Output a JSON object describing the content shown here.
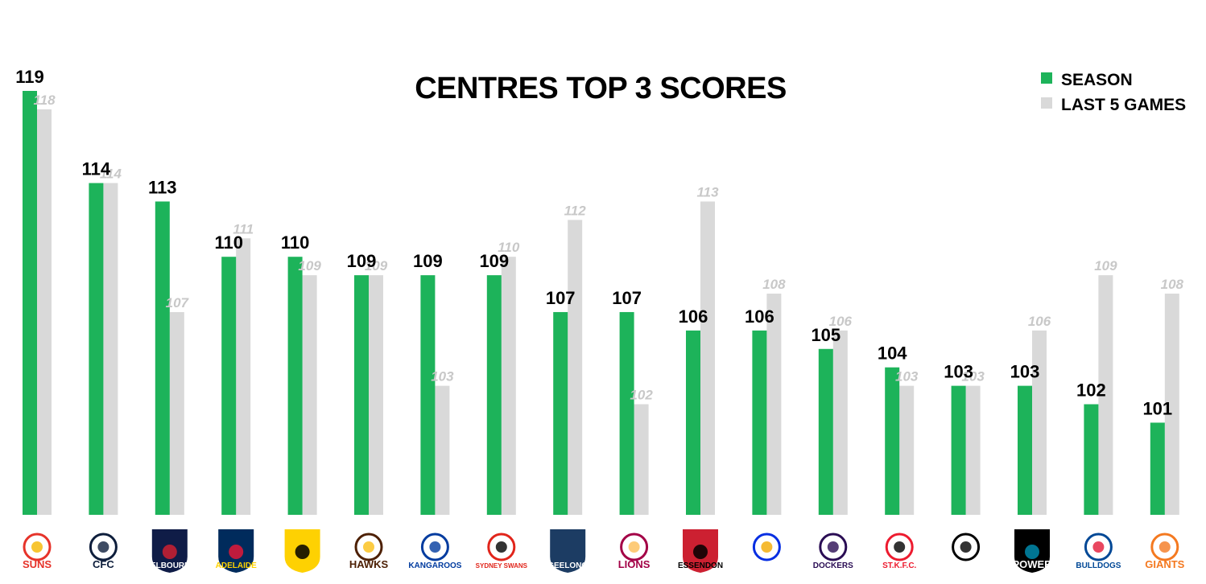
{
  "chart_data": {
    "type": "bar",
    "title": "CENTRES TOP 3 SCORES",
    "categories": [
      "SUNS",
      "Carlton",
      "MELBOURNE",
      "ADELAIDE CROWS",
      "Richmond",
      "HAWKS",
      "KANGAROOS",
      "SYDNEY SWANS",
      "GEELONG CATS",
      "BRISBANE LIONS",
      "ESSENDON",
      "West Coast Eagles",
      "FREMANTLE DOCKERS",
      "ST.K.F.C.",
      "Collingwood",
      "POWER",
      "WESTERN BULLDOGS",
      "GIANTS"
    ],
    "series": [
      {
        "name": "SEASON",
        "color": "#1db35a",
        "values": [
          119,
          114,
          113,
          110,
          110,
          109,
          109,
          109,
          107,
          107,
          106,
          106,
          105,
          104,
          103,
          103,
          102,
          101
        ]
      },
      {
        "name": "LAST 5 GAMES",
        "color": "#d9d9d9",
        "values": [
          118,
          114,
          107,
          111,
          109,
          109,
          103,
          110,
          112,
          102,
          113,
          108,
          106,
          103,
          103,
          106,
          109,
          108
        ]
      }
    ],
    "ylim": [
      96,
      120
    ],
    "grid": false,
    "legend_position": "top-right"
  },
  "logos": [
    {
      "icon": "suns-logo",
      "text": "SUNS",
      "bg": "#ffffff",
      "color": "#e6332a",
      "accent": "#f5b700"
    },
    {
      "icon": "carlton-logo",
      "text": "CFC",
      "bg": "#ffffff",
      "color": "#0e1e3c",
      "accent": "#0e1e3c"
    },
    {
      "icon": "melbourne-logo",
      "text": "MELBOURNE",
      "bg": "#0f1c47",
      "color": "#ffffff",
      "accent": "#cc2031"
    },
    {
      "icon": "crows-logo",
      "text": "ADELAIDE",
      "bg": "#002b5c",
      "color": "#ffd200",
      "accent": "#e21937"
    },
    {
      "icon": "tigers-logo",
      "text": "",
      "bg": "#fed102",
      "color": "#000000",
      "accent": "#000000"
    },
    {
      "icon": "hawks-logo",
      "text": "HAWKS",
      "bg": "#ffffff",
      "color": "#4d2004",
      "accent": "#fbbf15"
    },
    {
      "icon": "kangaroos-logo",
      "text": "KANGAROOS",
      "bg": "#ffffff",
      "color": "#013b9f",
      "accent": "#013b9f"
    },
    {
      "icon": "swans-logo",
      "text": "SYDNEY SWANS",
      "bg": "#ffffff",
      "color": "#e1251b",
      "accent": "#000000"
    },
    {
      "icon": "cats-logo",
      "text": "GEELONG",
      "bg": "#1c3c63",
      "color": "#ffffff",
      "accent": "#1c3c63"
    },
    {
      "icon": "lions-logo",
      "text": "LIONS",
      "bg": "#ffffff",
      "color": "#a30046",
      "accent": "#fdbe57"
    },
    {
      "icon": "bombers-logo",
      "text": "ESSENDON",
      "bg": "#cc2031",
      "color": "#000000",
      "accent": "#000000"
    },
    {
      "icon": "eagles-logo",
      "text": "",
      "bg": "#ffffff",
      "color": "#062ee2",
      "accent": "#f2a900"
    },
    {
      "icon": "dockers-logo",
      "text": "DOCKERS",
      "bg": "#ffffff",
      "color": "#2a0d54",
      "accent": "#2a0d54"
    },
    {
      "icon": "saints-logo",
      "text": "ST.K.F.C.",
      "bg": "#ffffff",
      "color": "#ed1b2f",
      "accent": "#000000"
    },
    {
      "icon": "magpies-logo",
      "text": "",
      "bg": "#ffffff",
      "color": "#000000",
      "accent": "#000000"
    },
    {
      "icon": "power-logo",
      "text": "POWER",
      "bg": "#000000",
      "color": "#ffffff",
      "accent": "#008aab"
    },
    {
      "icon": "bulldogs-logo",
      "text": "BULLDOGS",
      "bg": "#ffffff",
      "color": "#014896",
      "accent": "#e31937"
    },
    {
      "icon": "giants-logo",
      "text": "GIANTS",
      "bg": "#ffffff",
      "color": "#f47920",
      "accent": "#f47920"
    }
  ]
}
